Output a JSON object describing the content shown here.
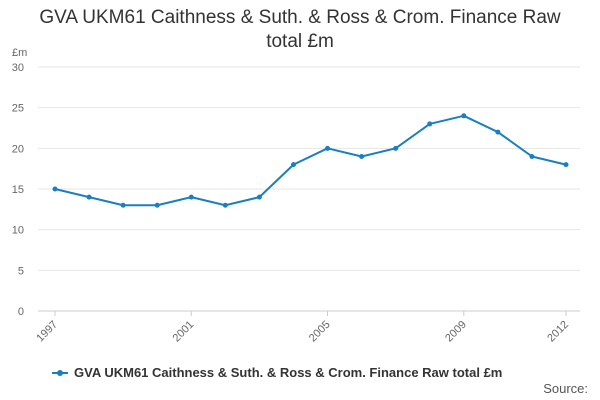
{
  "title_line1": "GVA UKM61 Caithness & Suth. & Ross & Crom. Finance Raw",
  "title_line2": "total £m",
  "source_label": "Source:",
  "chart_data": {
    "type": "line",
    "title": "GVA UKM61 Caithness & Suth. & Ross & Crom. Finance Raw total £m",
    "ylabel": "£m",
    "xlabel": "",
    "ylim": [
      0,
      30
    ],
    "yticks": [
      0,
      5,
      10,
      15,
      20,
      25,
      30
    ],
    "xtick_labels": [
      "1997",
      "2001",
      "2005",
      "2009",
      "2012"
    ],
    "x": [
      1997,
      1998,
      1999,
      2000,
      2001,
      2002,
      2003,
      2004,
      2005,
      2006,
      2007,
      2008,
      2009,
      2010,
      2011,
      2012
    ],
    "series": [
      {
        "name": "GVA UKM61 Caithness & Suth. & Ross & Crom. Finance Raw total £m",
        "color": "#1a7fc1",
        "values": [
          15,
          14,
          13,
          13,
          14,
          13,
          14,
          18,
          20,
          19,
          20,
          23,
          24,
          22,
          19,
          18
        ]
      }
    ],
    "grid": true,
    "legend": "bottom-left"
  }
}
